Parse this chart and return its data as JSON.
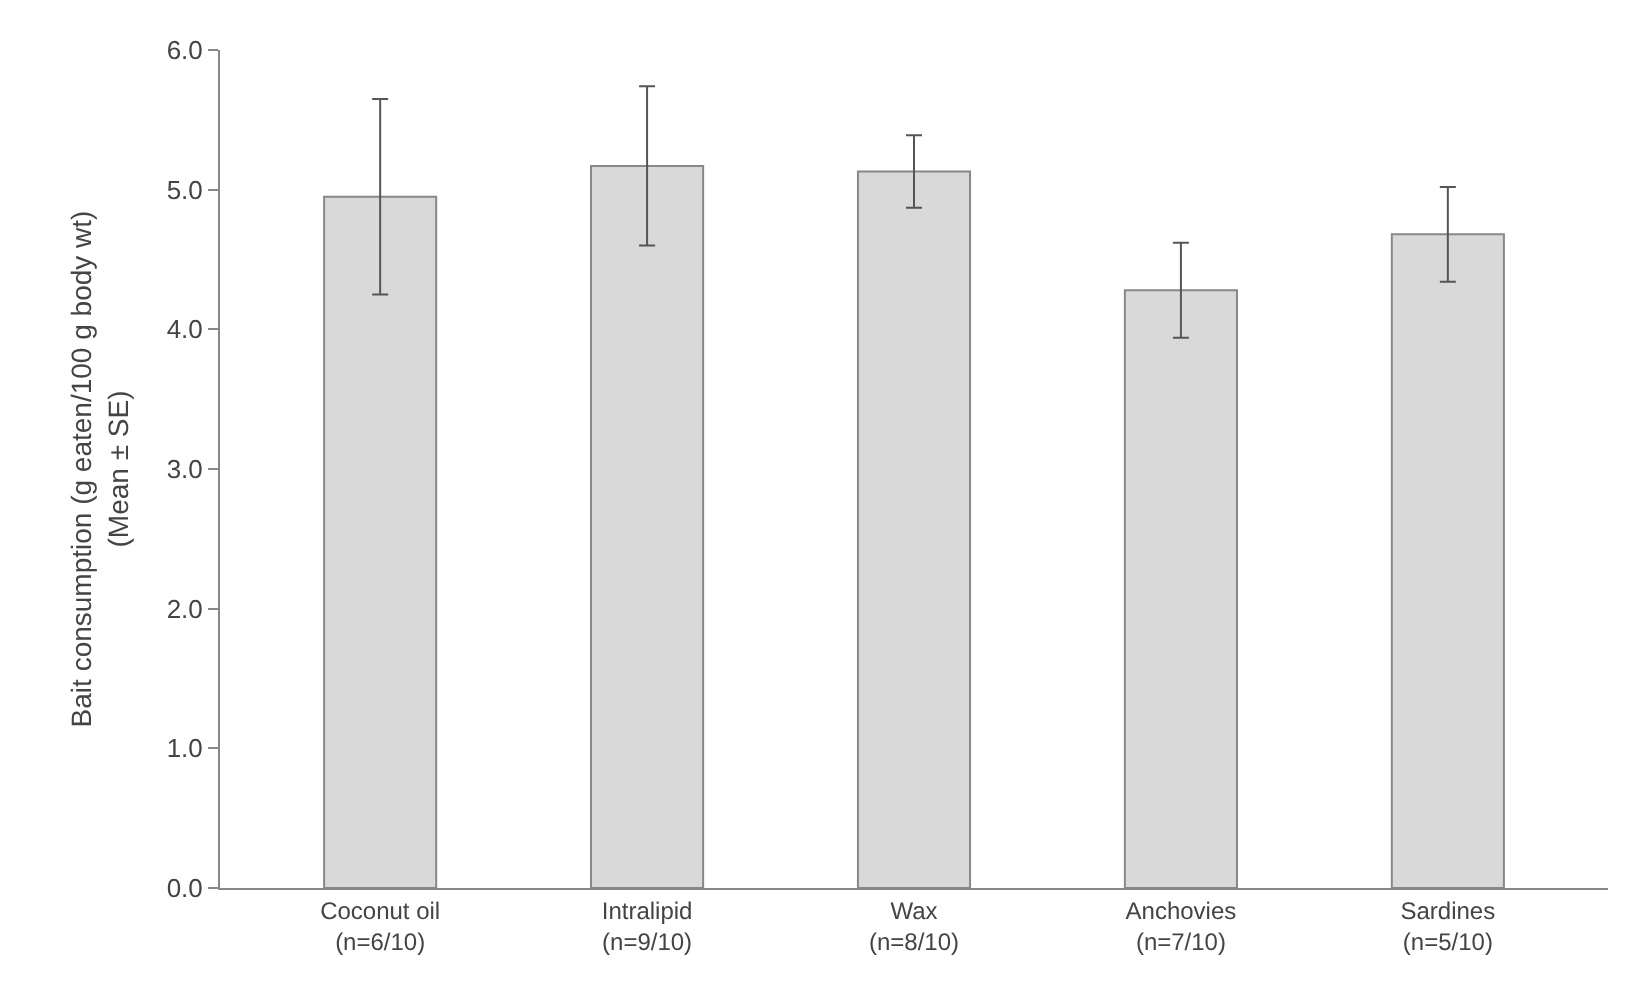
{
  "chart_data": {
    "type": "bar",
    "ylabel": "Bait consumption (g eaten/100 g body wt)\n(Mean ± SE)",
    "categories": [
      "Coconut oil\n(n=6/10)",
      "Intralipid\n(n=9/10)",
      "Wax\n(n=8/10)",
      "Anchovies\n(n=7/10)",
      "Sardines\n(n=5/10)"
    ],
    "values": [
      4.95,
      5.17,
      5.13,
      4.28,
      4.68
    ],
    "errors": [
      0.7,
      0.57,
      0.26,
      0.34,
      0.34
    ],
    "color": "#d9d9d9",
    "ylim": [
      0,
      6
    ],
    "yticks": [
      {
        "value": 0,
        "label": "0.0"
      },
      {
        "value": 1,
        "label": "1.0"
      },
      {
        "value": 2,
        "label": "2.0"
      },
      {
        "value": 3,
        "label": "3.0"
      },
      {
        "value": 4,
        "label": "4.0"
      },
      {
        "value": 5,
        "label": "5.0"
      },
      {
        "value": 6,
        "label": "6.0"
      }
    ],
    "legend": false
  }
}
